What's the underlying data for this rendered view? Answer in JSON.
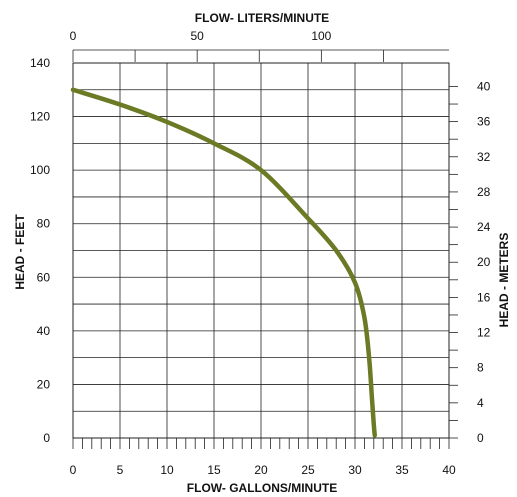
{
  "chart_data": {
    "type": "line",
    "x_bottom": {
      "label": "FLOW- GALLONS/MINUTE",
      "range": [
        0,
        40
      ],
      "ticks": [
        0,
        5,
        10,
        15,
        20,
        25,
        30,
        35,
        40
      ],
      "minor_step": 1
    },
    "x_top": {
      "label": "FLOW- LITERS/MINUTE",
      "range": [
        0,
        151.4
      ],
      "labeled_ticks": [
        0,
        50,
        100
      ],
      "unlabeled_ticks": [
        25,
        75,
        125
      ]
    },
    "y_left": {
      "label": "HEAD - FEET",
      "range": [
        0,
        140
      ],
      "ticks": [
        0,
        20,
        40,
        60,
        80,
        100,
        120,
        140
      ]
    },
    "y_right": {
      "label": "HEAD - METERS",
      "range": [
        0,
        42.67
      ],
      "ticks": [
        0,
        4,
        8,
        12,
        16,
        20,
        24,
        28,
        32,
        36,
        40
      ],
      "minor_step": 2
    },
    "grid": true,
    "series": [
      {
        "color": "#6b7a24",
        "x": [
          0,
          5,
          10,
          15,
          20,
          25,
          28,
          30,
          31,
          31.5,
          31.8,
          32,
          32.1
        ],
        "y": [
          130,
          124.5,
          118,
          110,
          100,
          82,
          70,
          58,
          45,
          30,
          15,
          5,
          1
        ]
      }
    ]
  }
}
